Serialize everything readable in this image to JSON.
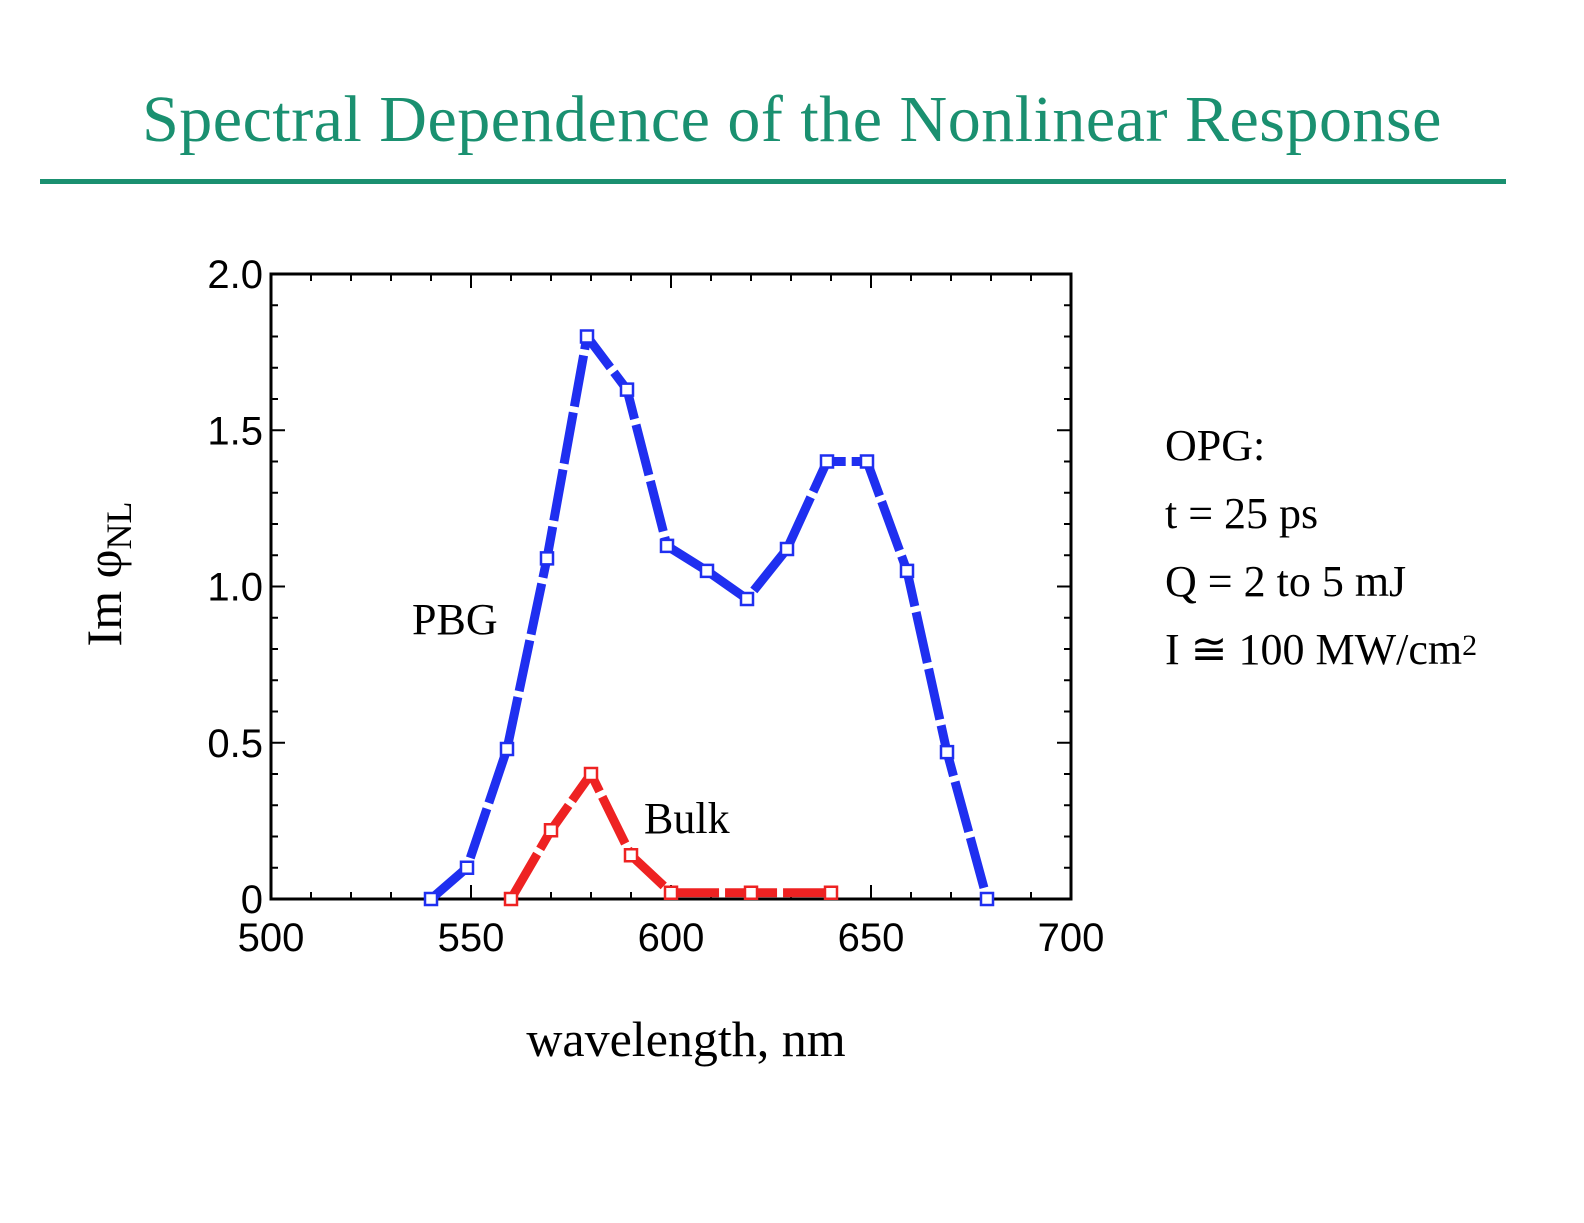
{
  "slide": {
    "title": "Spectral Dependence of the Nonlinear Response"
  },
  "notes": {
    "line1": "OPG:",
    "line2": "t = 25 ps",
    "line3": "Q = 2 to 5 mJ",
    "line4_main": "I ≅ 100 MW/cm",
    "line4_sup": "2"
  },
  "chart_data": {
    "type": "line",
    "xlabel": "wavelength, nm",
    "ylabel_main": "Im φ",
    "ylabel_sub": "NL",
    "xlim": [
      500,
      700
    ],
    "ylim": [
      0,
      2.0
    ],
    "xticks": [
      500,
      550,
      600,
      650,
      700
    ],
    "yticks": [
      0,
      0.5,
      1.0,
      1.5,
      2.0
    ],
    "ytick_labels": [
      "0",
      "0.5",
      "1.0",
      "1.5",
      "2.0"
    ],
    "grid": false,
    "markers": "open-square",
    "series": [
      {
        "name": "PBG",
        "color": "#1f2ff0",
        "x": [
          540,
          549,
          559,
          569,
          579,
          589,
          599,
          609,
          619,
          629,
          639,
          649,
          659,
          669,
          679
        ],
        "y": [
          0.0,
          0.1,
          0.48,
          1.09,
          1.8,
          1.63,
          1.13,
          1.05,
          0.96,
          1.12,
          1.4,
          1.4,
          1.05,
          0.47,
          0.0
        ]
      },
      {
        "name": "Bulk",
        "color": "#ee2222",
        "x": [
          560,
          570,
          580,
          590,
          600,
          620,
          640
        ],
        "y": [
          0.0,
          0.22,
          0.4,
          0.14,
          0.02,
          0.02,
          0.02
        ]
      }
    ]
  }
}
